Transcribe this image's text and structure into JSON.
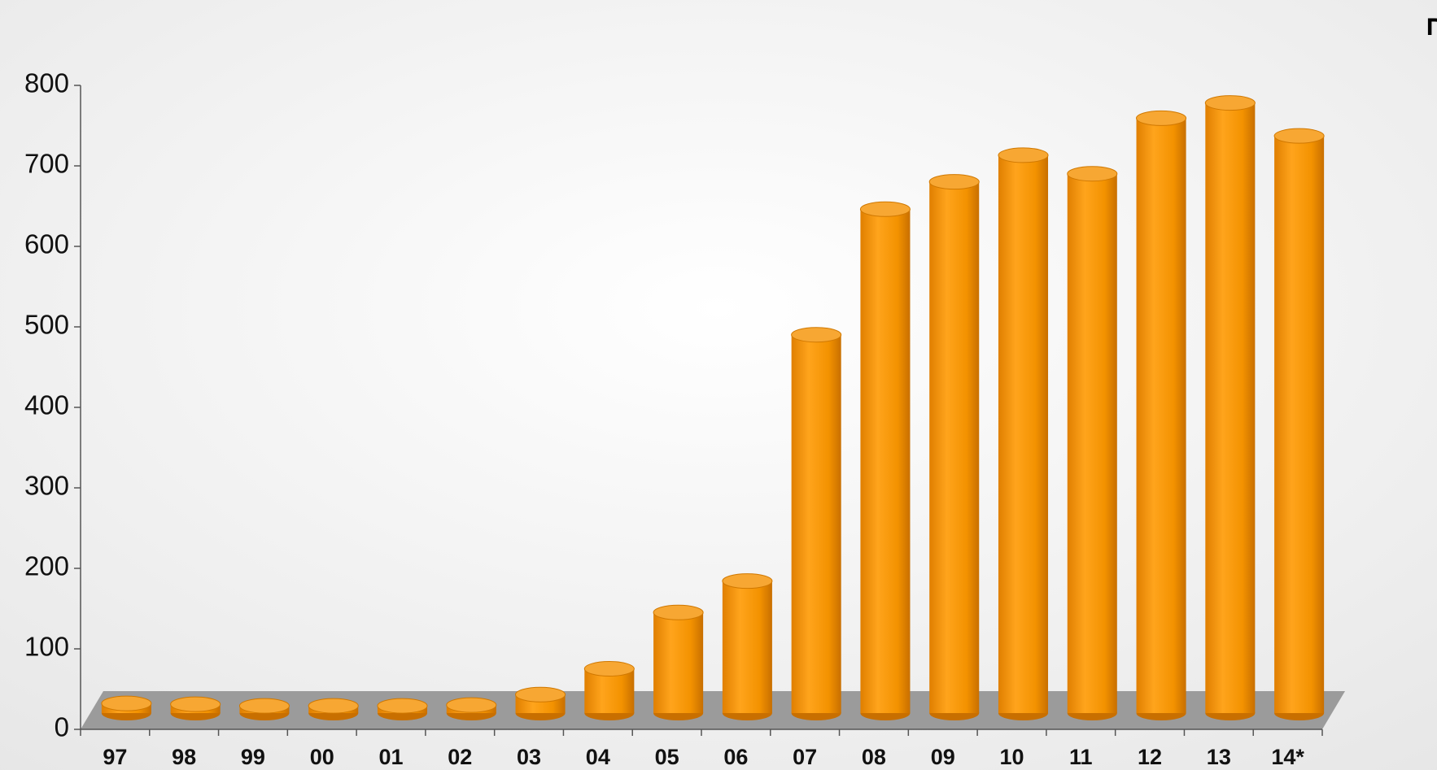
{
  "chart_data": {
    "type": "bar",
    "title": "מיליארדי ש\"ח",
    "categories": [
      "97",
      "98",
      "99",
      "00",
      "01",
      "02",
      "03",
      "04",
      "05",
      "06",
      "07",
      "08",
      "09",
      "10",
      "11",
      "12",
      "13",
      "14*"
    ],
    "values": [
      12,
      11,
      9,
      9,
      9,
      10,
      23,
      55,
      125,
      164,
      470,
      626,
      660,
      693,
      670,
      739,
      758,
      717
    ],
    "color": "#f39200",
    "ylim": [
      0,
      800
    ],
    "yticks": [
      0,
      100,
      200,
      300,
      400,
      500,
      600,
      700,
      800
    ],
    "grid": false
  }
}
